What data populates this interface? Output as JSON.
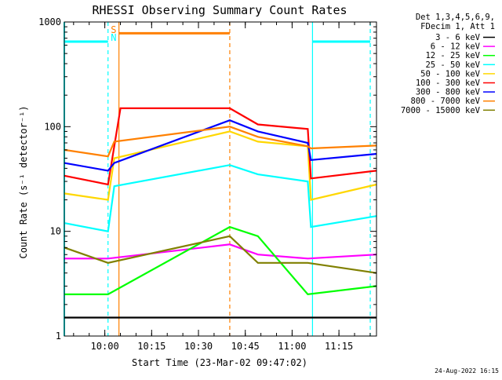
{
  "chart_data": {
    "type": "line",
    "title": "RHESSI Observing Summary Count Rates",
    "xlabel": "Start Time (23-Mar-02 09:47:02)",
    "ylabel": "Count Rate (s⁻¹ detector⁻¹)",
    "y_scale": "log",
    "ylim": [
      1,
      1000
    ],
    "xlim_minutes": [
      0,
      100
    ],
    "x_tick_labels": [
      "10:00",
      "10:15",
      "10:30",
      "10:45",
      "11:00",
      "11:15"
    ],
    "y_tick_labels": [
      "1",
      "10",
      "100",
      "1000"
    ],
    "legend_header": [
      "Det 1,3,4,5,6,9,",
      "FDecim 1, Att 1"
    ],
    "legend_position": "top-right",
    "timestamp": "24-Aug-2022 16:15",
    "flag_labels": {
      "saa": "S",
      "night": "N"
    },
    "series": [
      {
        "name": "3 - 6 keV",
        "color": "#000000",
        "points": [
          [
            0,
            1.5
          ],
          [
            14,
            1.5
          ],
          [
            53,
            1.5
          ],
          [
            62,
            1.5
          ],
          [
            78,
            1.5
          ],
          [
            100,
            1.5
          ]
        ]
      },
      {
        "name": "6 - 12 keV",
        "color": "#ff00ff",
        "points": [
          [
            0,
            5.5
          ],
          [
            14,
            5.5
          ],
          [
            53,
            7.5
          ],
          [
            62,
            6
          ],
          [
            78,
            5.5
          ],
          [
            100,
            6
          ]
        ]
      },
      {
        "name": "12 - 25 keV",
        "color": "#00ff00",
        "points": [
          [
            0,
            2.5
          ],
          [
            14,
            2.5
          ],
          [
            53,
            11
          ],
          [
            62,
            9
          ],
          [
            78,
            2.5
          ],
          [
            100,
            3
          ]
        ]
      },
      {
        "name": "25 - 50 keV",
        "color": "#00ffff",
        "points": [
          [
            0,
            12
          ],
          [
            14,
            10
          ],
          [
            16,
            27
          ],
          [
            53,
            43
          ],
          [
            62,
            35
          ],
          [
            78,
            30
          ],
          [
            79,
            11
          ],
          [
            100,
            14
          ]
        ]
      },
      {
        "name": "50 - 100 keV",
        "color": "#ffd700",
        "points": [
          [
            0,
            23
          ],
          [
            14,
            20
          ],
          [
            16,
            50
          ],
          [
            53,
            90
          ],
          [
            62,
            72
          ],
          [
            78,
            65
          ],
          [
            79,
            20
          ],
          [
            100,
            28
          ]
        ]
      },
      {
        "name": "100 - 300 keV",
        "color": "#ff0000",
        "points": [
          [
            0,
            34
          ],
          [
            14,
            28
          ],
          [
            18,
            150
          ],
          [
            53,
            150
          ],
          [
            62,
            105
          ],
          [
            78,
            95
          ],
          [
            79,
            32
          ],
          [
            100,
            38
          ]
        ]
      },
      {
        "name": "300 - 800 keV",
        "color": "#0000ff",
        "points": [
          [
            0,
            45
          ],
          [
            14,
            38
          ],
          [
            16,
            45
          ],
          [
            53,
            115
          ],
          [
            62,
            90
          ],
          [
            78,
            70
          ],
          [
            79,
            48
          ],
          [
            100,
            55
          ]
        ]
      },
      {
        "name": "800 - 7000 keV",
        "color": "#ff8000",
        "points": [
          [
            0,
            60
          ],
          [
            14,
            52
          ],
          [
            16,
            72
          ],
          [
            53,
            100
          ],
          [
            62,
            80
          ],
          [
            78,
            65
          ],
          [
            79,
            62
          ],
          [
            100,
            66
          ]
        ]
      },
      {
        "name": "7000 - 15000 keV",
        "color": "#808000",
        "points": [
          [
            0,
            7
          ],
          [
            14,
            5
          ],
          [
            53,
            9
          ],
          [
            62,
            5
          ],
          [
            78,
            5
          ],
          [
            100,
            4
          ]
        ]
      }
    ]
  }
}
